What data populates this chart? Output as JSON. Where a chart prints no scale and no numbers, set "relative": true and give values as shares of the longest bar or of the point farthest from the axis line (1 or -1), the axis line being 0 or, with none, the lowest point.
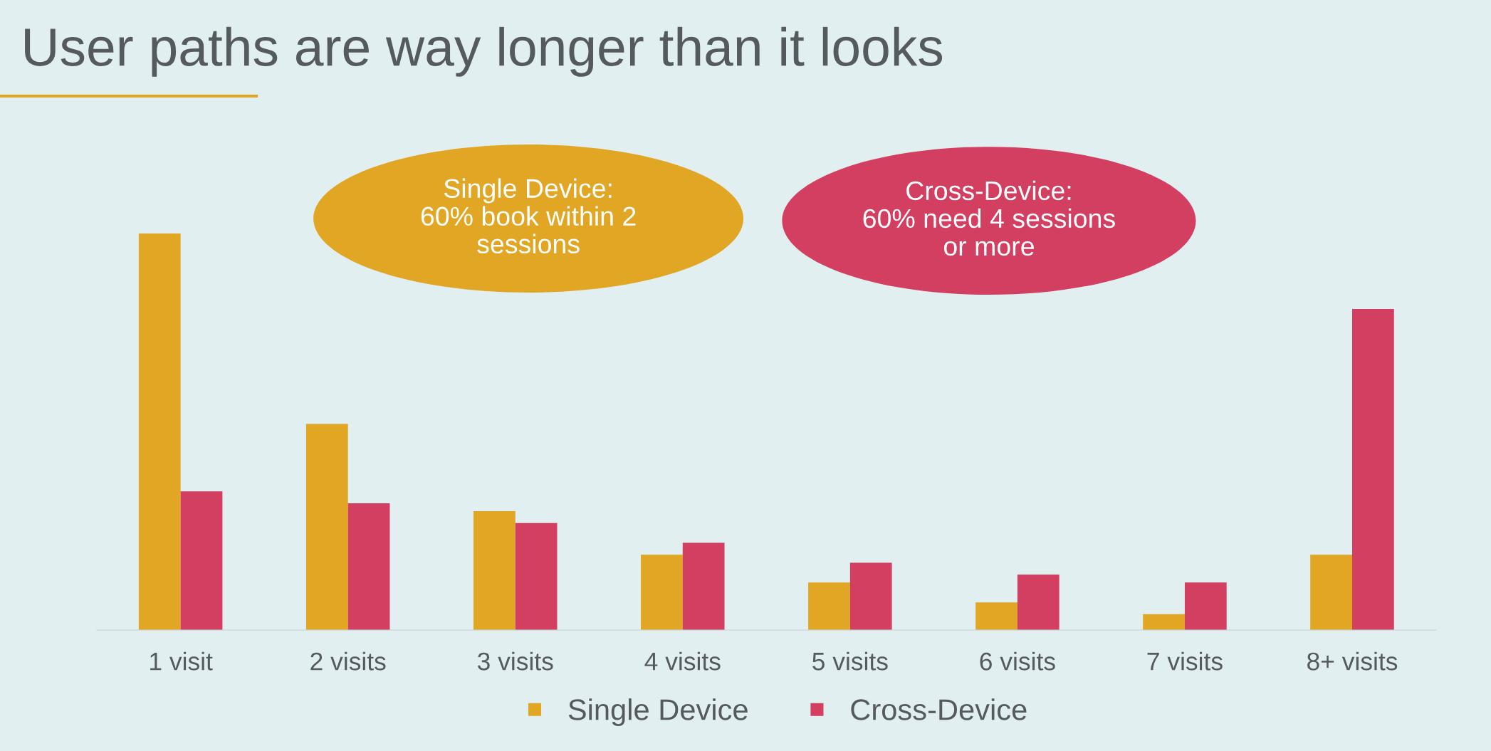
{
  "chart_data": {
    "type": "bar",
    "title": "User paths are way longer than it looks",
    "categories": [
      "1 visit",
      "2 visits",
      "3 visits",
      "4 visits",
      "5 visits",
      "6 visits",
      "7 visits",
      "8+ visits"
    ],
    "series": [
      {
        "name": "Single Device",
        "color": "#e0a624",
        "values": [
          1.0,
          0.52,
          0.3,
          0.19,
          0.12,
          0.07,
          0.04,
          0.19
        ]
      },
      {
        "name": "Cross-Device",
        "color": "#d33f60",
        "values": [
          0.35,
          0.32,
          0.27,
          0.22,
          0.17,
          0.14,
          0.12,
          0.81
        ]
      }
    ],
    "relative": true,
    "legend": "bottom",
    "grid": false,
    "annotations": [
      "Single Device:\n60% book within 2\nsessions",
      "Cross-Device:\n60% need 4 sessions\nor more"
    ]
  }
}
